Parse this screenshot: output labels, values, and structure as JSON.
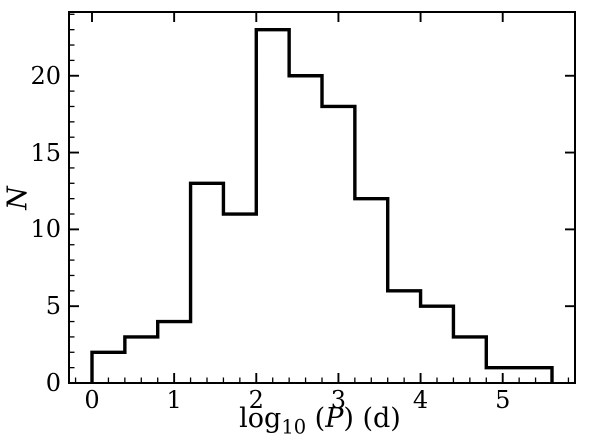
{
  "chart_data": {
    "type": "histogram",
    "title": "",
    "xlabel": "log10 (P) (d)",
    "xlabel_parts": {
      "func": "log",
      "sub": "10",
      "pre_var": " (",
      "var": "P",
      "post_var": ") (d)"
    },
    "ylabel": "N",
    "bin_edges": [
      0.0,
      0.4,
      0.8,
      1.2,
      1.6,
      2.0,
      2.4,
      2.8,
      3.2,
      3.6,
      4.0,
      4.4,
      4.8,
      5.2,
      5.6
    ],
    "counts": [
      2,
      3,
      4,
      13,
      11,
      23,
      20,
      18,
      12,
      6,
      5,
      3,
      1,
      1
    ],
    "xlim": [
      -0.28,
      5.88
    ],
    "ylim": [
      0,
      24.15
    ],
    "xticks": {
      "values": [
        0,
        1,
        2,
        3,
        4,
        5
      ],
      "labels": [
        "0",
        "1",
        "2",
        "3",
        "4",
        "5"
      ],
      "minor_step": 0.2
    },
    "yticks": {
      "values": [
        0,
        5,
        10,
        15,
        20
      ],
      "labels": [
        "0",
        "5",
        "10",
        "15",
        "20"
      ],
      "minor_step": 1
    },
    "line_color": "#000000",
    "spine_color": "#000000",
    "background": "#ffffff",
    "grid": false,
    "legend": null
  }
}
